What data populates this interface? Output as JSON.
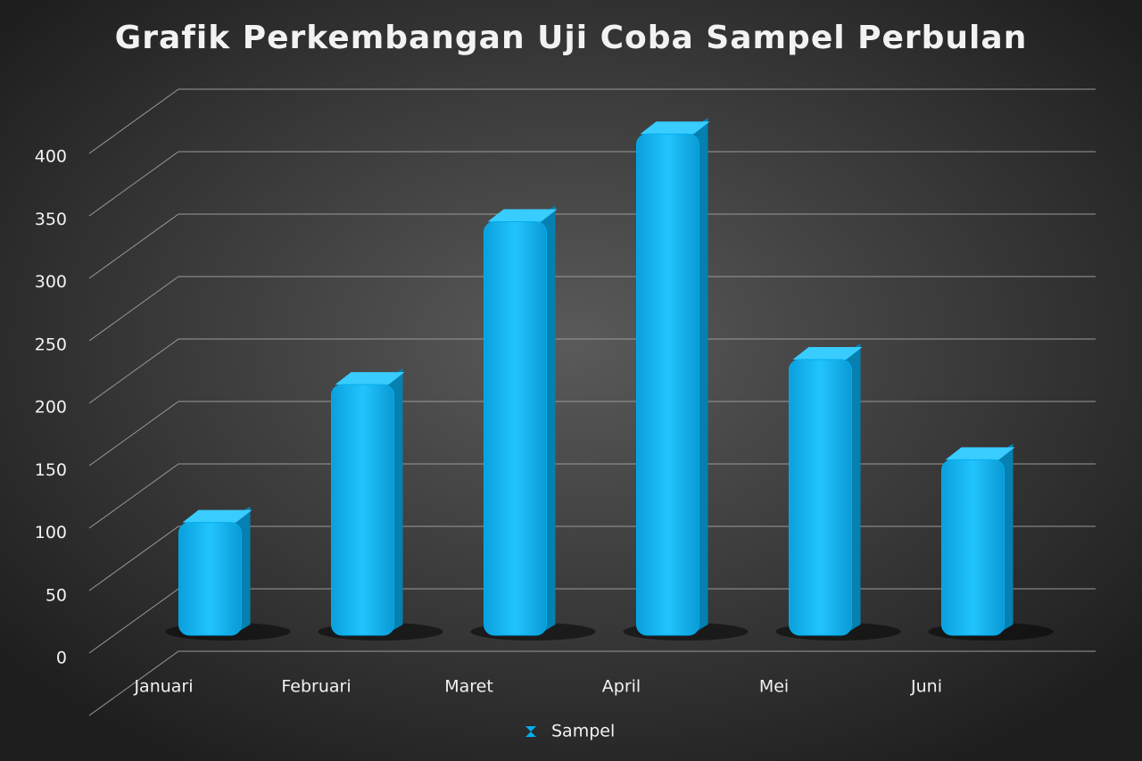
{
  "chart_data": {
    "type": "bar",
    "title": "Grafik Perkembangan Uji Coba Sampel Perbulan",
    "categories": [
      "Januari",
      "Februari",
      "Maret",
      "April",
      "Mei",
      "Juni"
    ],
    "series": [
      {
        "name": "Sampel",
        "color": "#00aeef",
        "values": [
          90,
          200,
          330,
          400,
          220,
          140
        ]
      }
    ],
    "ylim": [
      0,
      450
    ],
    "yticks": [
      0,
      50,
      100,
      150,
      200,
      250,
      300,
      350,
      400
    ],
    "grid": true,
    "legend": "bottom"
  }
}
